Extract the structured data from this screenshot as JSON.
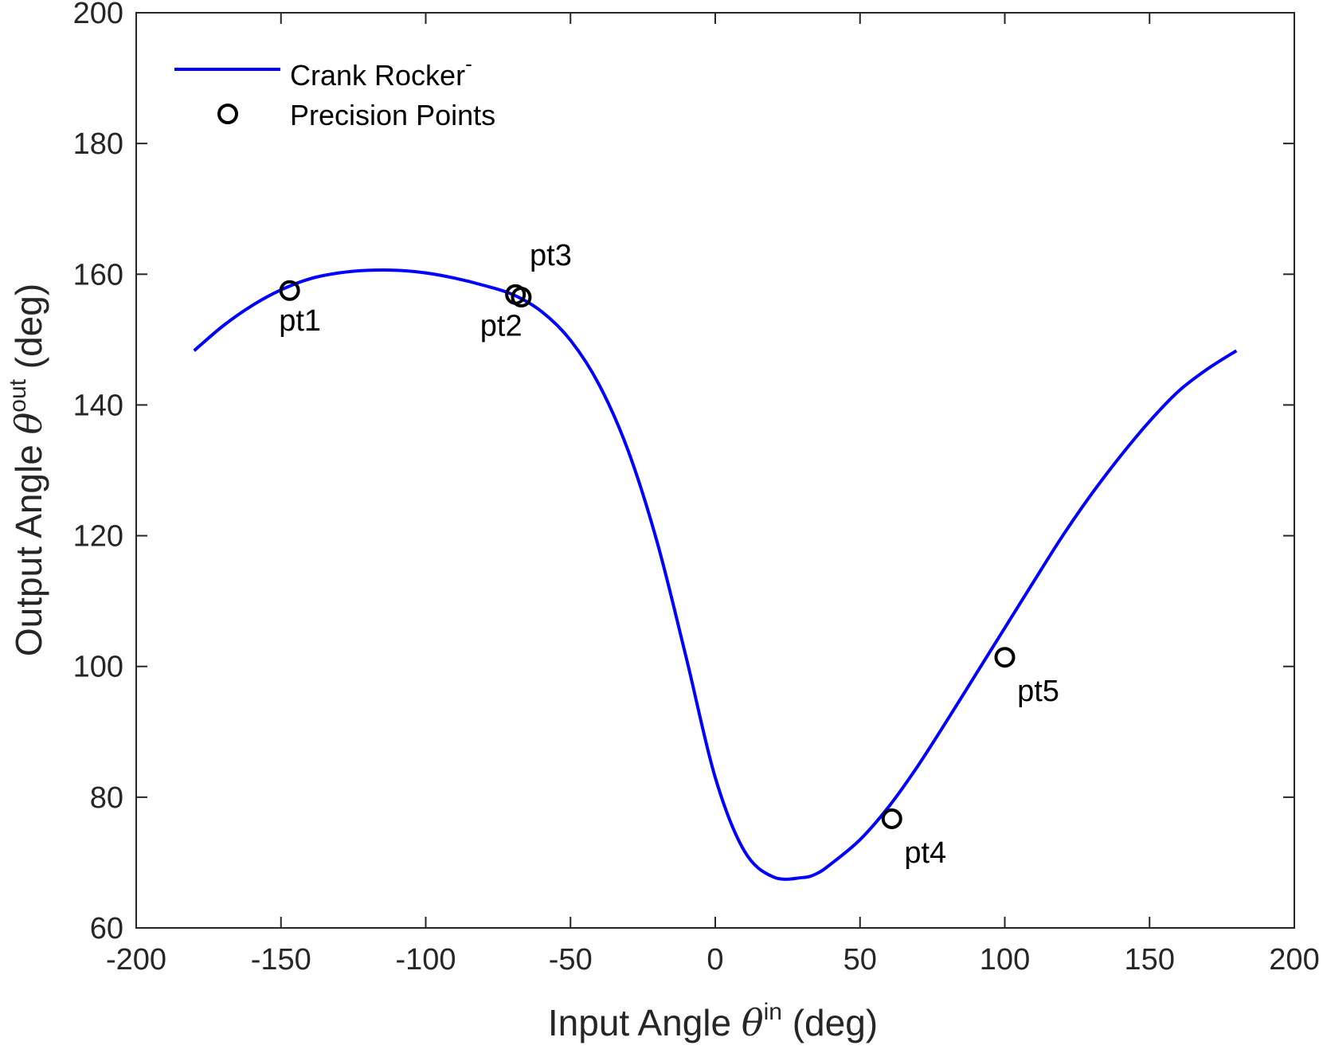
{
  "colors": {
    "background": "#ffffff",
    "axes": "#262626",
    "curve": "#0000ff",
    "marker": "#000000"
  },
  "chart_data": {
    "type": "line",
    "grid": false,
    "legend_placement": "top-left",
    "xlim": [
      -200,
      200
    ],
    "ylim": [
      60,
      200
    ],
    "xticks": [
      -200,
      -150,
      -100,
      -50,
      0,
      50,
      100,
      150,
      200
    ],
    "yticks": [
      60,
      80,
      100,
      120,
      140,
      160,
      180,
      200
    ],
    "xlabel": {
      "prefix": "Input Angle ",
      "symbol": "θ",
      "superscript": "in",
      "suffix": " (deg)"
    },
    "ylabel": {
      "prefix": "Output Angle ",
      "symbol": "θ",
      "superscript": "out",
      "suffix": " (deg)"
    },
    "series": [
      {
        "name": "Crank Rocker",
        "name_superscript": "-",
        "kind": "line",
        "color": "#0000ff",
        "x": [
          -180,
          -170,
          -160,
          -150,
          -140,
          -130,
          -120,
          -110,
          -100,
          -90,
          -80,
          -70,
          -60,
          -50,
          -40,
          -30,
          -20,
          -10,
          0,
          10,
          20,
          30,
          35,
          40,
          50,
          60,
          70,
          80,
          90,
          100,
          110,
          120,
          130,
          140,
          150,
          160,
          170,
          180
        ],
        "y": [
          148.3,
          152.1,
          155.2,
          157.6,
          159.3,
          160.2,
          160.6,
          160.6,
          160.2,
          159.4,
          158.3,
          156.9,
          154.3,
          149.9,
          143.0,
          132.9,
          118.9,
          101.3,
          83.0,
          71.8,
          67.8,
          67.7,
          68.3,
          69.8,
          73.5,
          78.6,
          84.8,
          91.7,
          98.8,
          105.9,
          113.0,
          120.0,
          126.4,
          132.2,
          137.5,
          142.1,
          145.5,
          148.3
        ]
      },
      {
        "name": "Precision Points",
        "kind": "scatter",
        "marker": "circle",
        "color": "#000000",
        "labels": [
          "pt1",
          "pt2",
          "pt3",
          "pt4",
          "pt5"
        ],
        "x": [
          -147,
          -69,
          -67,
          61,
          100
        ],
        "y": [
          157.5,
          156.9,
          156.5,
          76.7,
          101.4
        ]
      }
    ]
  }
}
